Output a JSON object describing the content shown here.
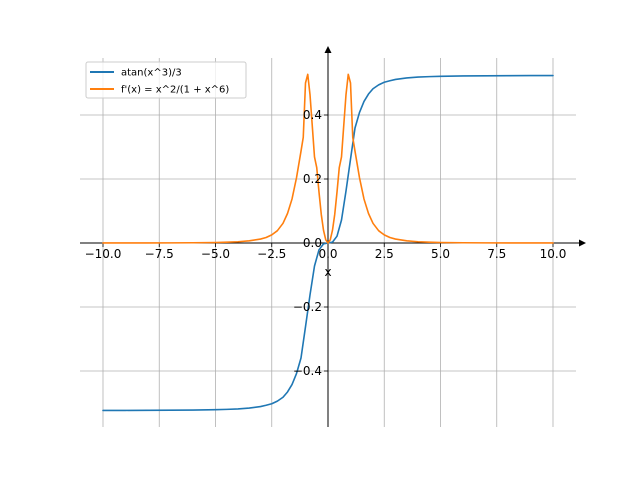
{
  "chart_data": {
    "type": "line",
    "title": "",
    "xlabel": "x",
    "ylabel": "",
    "xlim": [
      -11,
      11.5
    ],
    "ylim": [
      -0.58,
      0.6
    ],
    "grid": true,
    "legend_position": "top-left",
    "x_ticks": [
      -10,
      -7.5,
      -5,
      -2.5,
      0,
      2.5,
      5,
      7.5,
      10
    ],
    "x_tick_labels": [
      "−10.0",
      "−7.5",
      "−5.0",
      "−2.5",
      "0.0",
      "2.5",
      "5.0",
      "7.5",
      "10.0"
    ],
    "y_ticks": [
      -0.4,
      -0.2,
      0.0,
      0.2,
      0.4
    ],
    "y_tick_labels": [
      "−0.4",
      "−0.2",
      "0.0",
      "0.2",
      "0.4"
    ],
    "series": [
      {
        "name": "atan(x^3)/3",
        "color": "#1f77b4",
        "x": [
          -10,
          -9,
          -8,
          -7,
          -6,
          -5,
          -4.5,
          -4,
          -3.5,
          -3,
          -2.75,
          -2.5,
          -2.25,
          -2,
          -1.8,
          -1.6,
          -1.4,
          -1.2,
          -1,
          -0.8,
          -0.6,
          -0.4,
          -0.2,
          0,
          0.2,
          0.4,
          0.6,
          0.8,
          1,
          1.2,
          1.4,
          1.6,
          1.8,
          2,
          2.25,
          2.5,
          2.75,
          3,
          3.5,
          4,
          4.5,
          5,
          6,
          7,
          8,
          9,
          10
        ],
        "y": [
          -0.5233,
          -0.5231,
          -0.523,
          -0.5226,
          -0.5221,
          -0.521,
          -0.5199,
          -0.5184,
          -0.5158,
          -0.5112,
          -0.507,
          -0.5023,
          -0.4941,
          -0.4821,
          -0.4655,
          -0.4425,
          -0.4081,
          -0.3593,
          -0.2618,
          -0.1623,
          -0.0719,
          -0.0213,
          -0.0027,
          0.0,
          0.0027,
          0.0213,
          0.0719,
          0.1623,
          0.2618,
          0.3593,
          0.4081,
          0.4425,
          0.4655,
          0.4821,
          0.4941,
          0.5023,
          0.507,
          0.5112,
          0.5158,
          0.5184,
          0.5199,
          0.521,
          0.5221,
          0.5226,
          0.523,
          0.5231,
          0.5233
        ]
      },
      {
        "name": "f'(x) = x^2/(1 + x^6)",
        "color": "#ff7f0e",
        "x": [
          -10,
          -9,
          -8,
          -7,
          -6,
          -5,
          -4.5,
          -4,
          -3.5,
          -3,
          -2.75,
          -2.5,
          -2.25,
          -2,
          -1.8,
          -1.6,
          -1.4,
          -1.2,
          -1.1,
          -1,
          -0.9,
          -0.8,
          -0.7,
          -0.6,
          -0.5,
          -0.4,
          -0.3,
          -0.2,
          -0.1,
          0,
          0.1,
          0.2,
          0.3,
          0.4,
          0.5,
          0.6,
          0.7,
          0.8,
          0.9,
          1,
          1.1,
          1.2,
          1.4,
          1.6,
          1.8,
          2,
          2.25,
          2.5,
          2.75,
          3,
          3.5,
          4,
          4.5,
          5,
          6,
          7,
          8,
          9,
          10
        ],
        "y": [
          0.0001,
          0.0002,
          0.0002,
          0.0004,
          0.0008,
          0.0016,
          0.0024,
          0.0039,
          0.0068,
          0.0123,
          0.0171,
          0.0254,
          0.0385,
          0.0615,
          0.0922,
          0.1373,
          0.2039,
          0.2869,
          0.33,
          0.5,
          0.527,
          0.4637,
          0.3672,
          0.2689,
          0.2353,
          0.159,
          0.0899,
          0.04,
          0.01,
          0.0,
          0.01,
          0.04,
          0.0899,
          0.159,
          0.2353,
          0.2689,
          0.3672,
          0.4637,
          0.527,
          0.5,
          0.33,
          0.2869,
          0.2039,
          0.1373,
          0.0922,
          0.0615,
          0.0385,
          0.0254,
          0.0171,
          0.0123,
          0.0068,
          0.0039,
          0.0024,
          0.0016,
          0.0008,
          0.0004,
          0.0002,
          0.0002,
          0.0001
        ]
      }
    ]
  }
}
